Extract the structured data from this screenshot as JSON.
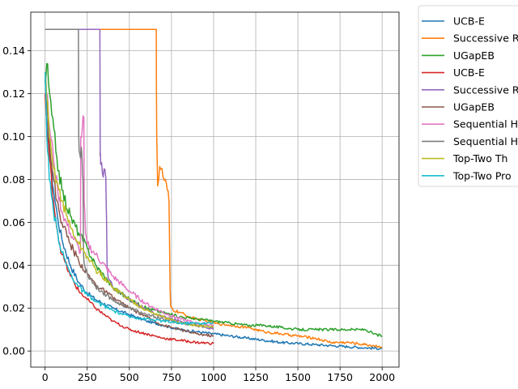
{
  "chart_data": {
    "type": "line",
    "title": "",
    "xlabel": "",
    "ylabel": "",
    "xlim": [
      -85,
      2100
    ],
    "ylim": [
      -0.0075,
      0.158
    ],
    "xticks": [
      0,
      250,
      500,
      750,
      1000,
      1250,
      1500,
      1750,
      2000
    ],
    "yticks": [
      0.0,
      0.02,
      0.04,
      0.06,
      0.08,
      0.1,
      0.12,
      0.14
    ],
    "xtick_labels": [
      "0",
      "250",
      "500",
      "750",
      "1000",
      "1250",
      "1500",
      "1750",
      "2000"
    ],
    "ytick_labels": [
      "0.00",
      "0.02",
      "0.04",
      "0.06",
      "0.08",
      "0.10",
      "0.12",
      "0.14"
    ],
    "grid": true,
    "legend_position": "outside-right-top",
    "series": [
      {
        "name": "UCB-E",
        "color": "#1f77b4",
        "x": [
          0,
          10,
          25,
          50,
          75,
          100,
          150,
          200,
          250,
          300,
          400,
          500,
          600,
          700,
          800,
          900,
          1000,
          1100,
          1200,
          1300,
          1400,
          1500,
          1600,
          1700,
          1800,
          1900,
          2000
        ],
        "y": [
          0.13,
          0.115,
          0.095,
          0.075,
          0.062,
          0.052,
          0.04,
          0.032,
          0.027,
          0.024,
          0.02,
          0.017,
          0.014,
          0.012,
          0.01,
          0.009,
          0.008,
          0.007,
          0.006,
          0.005,
          0.004,
          0.0035,
          0.003,
          0.0025,
          0.002,
          0.0015,
          0.0012
        ]
      },
      {
        "name": "Successive Rejects",
        "color": "#ff7f0e",
        "x": [
          0,
          5,
          100,
          200,
          300,
          400,
          500,
          600,
          660,
          662,
          668,
          680,
          700,
          720,
          735,
          740,
          742,
          745,
          760,
          800,
          850,
          900,
          1000,
          1100,
          1200,
          1300,
          1400,
          1500,
          1600,
          1700,
          1800,
          1900,
          2000
        ],
        "y": [
          0.15,
          0.15,
          0.15,
          0.15,
          0.15,
          0.15,
          0.15,
          0.15,
          0.15,
          0.102,
          0.077,
          0.086,
          0.081,
          0.078,
          0.07,
          0.04,
          0.028,
          0.021,
          0.019,
          0.018,
          0.016,
          0.015,
          0.013,
          0.012,
          0.011,
          0.009,
          0.008,
          0.007,
          0.006,
          0.004,
          0.004,
          0.003,
          0.002
        ]
      },
      {
        "name": "UGapEB",
        "color": "#2ca02c",
        "x": [
          0,
          10,
          20,
          40,
          70,
          100,
          150,
          200,
          250,
          300,
          400,
          500,
          600,
          700,
          800,
          900,
          1000,
          1100,
          1200,
          1300,
          1400,
          1500,
          1600,
          1700,
          1800,
          1900,
          1950,
          2000
        ],
        "y": [
          0.125,
          0.134,
          0.125,
          0.11,
          0.09,
          0.075,
          0.063,
          0.055,
          0.048,
          0.04,
          0.03,
          0.024,
          0.02,
          0.018,
          0.016,
          0.015,
          0.014,
          0.013,
          0.012,
          0.012,
          0.011,
          0.01,
          0.01,
          0.01,
          0.01,
          0.01,
          0.008,
          0.007
        ]
      },
      {
        "name": "UCB-E",
        "color": "#d62728",
        "x": [
          0,
          10,
          25,
          50,
          75,
          100,
          150,
          200,
          250,
          300,
          400,
          500,
          600,
          700,
          800,
          900,
          1000
        ],
        "y": [
          0.12,
          0.105,
          0.09,
          0.07,
          0.055,
          0.045,
          0.035,
          0.028,
          0.024,
          0.02,
          0.014,
          0.01,
          0.008,
          0.006,
          0.005,
          0.004,
          0.0035
        ]
      },
      {
        "name": "Successive Rejects",
        "color": "#9467bd",
        "x": [
          0,
          5,
          100,
          200,
          300,
          325,
          327,
          330,
          340,
          350,
          360,
          365,
          368,
          375,
          400,
          450,
          500,
          550,
          600,
          700,
          800,
          900,
          1000
        ],
        "y": [
          0.15,
          0.15,
          0.15,
          0.15,
          0.15,
          0.15,
          0.091,
          0.087,
          0.083,
          0.085,
          0.081,
          0.06,
          0.04,
          0.034,
          0.03,
          0.027,
          0.024,
          0.022,
          0.019,
          0.016,
          0.014,
          0.012,
          0.01
        ]
      },
      {
        "name": "UGapEB",
        "color": "#8c564b",
        "x": [
          0,
          10,
          20,
          40,
          70,
          100,
          150,
          200,
          250,
          300,
          400,
          500,
          600,
          700,
          800,
          900,
          1000
        ],
        "y": [
          0.128,
          0.12,
          0.105,
          0.085,
          0.07,
          0.06,
          0.05,
          0.042,
          0.036,
          0.031,
          0.025,
          0.02,
          0.016,
          0.012,
          0.01,
          0.008,
          0.007
        ]
      },
      {
        "name": "Sequential Halving",
        "color": "#e377c2",
        "x": [
          0,
          10,
          25,
          50,
          75,
          100,
          150,
          200,
          210,
          212,
          220,
          230,
          232,
          240,
          250,
          300,
          400,
          500,
          600,
          700,
          800,
          900,
          1000
        ],
        "y": [
          0.13,
          0.12,
          0.105,
          0.09,
          0.075,
          0.065,
          0.055,
          0.048,
          0.046,
          0.1,
          0.103,
          0.109,
          0.07,
          0.055,
          0.05,
          0.045,
          0.035,
          0.028,
          0.022,
          0.018,
          0.015,
          0.013,
          0.012
        ]
      },
      {
        "name": "Sequential Halving",
        "color": "#7f7f7f",
        "x": [
          0,
          5,
          100,
          195,
          198,
          200,
          202,
          210,
          215,
          220,
          225,
          228,
          235,
          250,
          300,
          400,
          500,
          600,
          700,
          800,
          900,
          1000
        ],
        "y": [
          0.15,
          0.15,
          0.15,
          0.15,
          0.15,
          0.1,
          0.093,
          0.09,
          0.095,
          0.089,
          0.08,
          0.045,
          0.04,
          0.036,
          0.03,
          0.024,
          0.02,
          0.017,
          0.015,
          0.013,
          0.012,
          0.011
        ]
      },
      {
        "name": "Top-Two Thompson Sampling",
        "color": "#bcbd22",
        "x": [
          0,
          10,
          25,
          50,
          75,
          100,
          150,
          200,
          250,
          300,
          400,
          500,
          600,
          700,
          800,
          900,
          1000
        ],
        "y": [
          0.13,
          0.118,
          0.1,
          0.085,
          0.078,
          0.07,
          0.058,
          0.05,
          0.044,
          0.038,
          0.03,
          0.024,
          0.019,
          0.016,
          0.013,
          0.012,
          0.011
        ]
      },
      {
        "name": "Top-Two Probability Sampling",
        "color": "#17becf",
        "x": [
          0,
          10,
          25,
          50,
          75,
          100,
          150,
          200,
          250,
          300,
          400,
          500,
          600,
          700,
          800,
          900,
          1000
        ],
        "y": [
          0.13,
          0.1,
          0.08,
          0.065,
          0.055,
          0.046,
          0.036,
          0.03,
          0.026,
          0.023,
          0.019,
          0.016,
          0.015,
          0.014,
          0.013,
          0.013,
          0.013
        ]
      }
    ],
    "legend_labels": [
      "UCB-E",
      "Successive R",
      "UGapEB",
      "UCB-E",
      "Successive R",
      "UGapEB",
      "Sequential H",
      "Sequential H",
      "Top-Two Th",
      "Top-Two Pro"
    ]
  }
}
